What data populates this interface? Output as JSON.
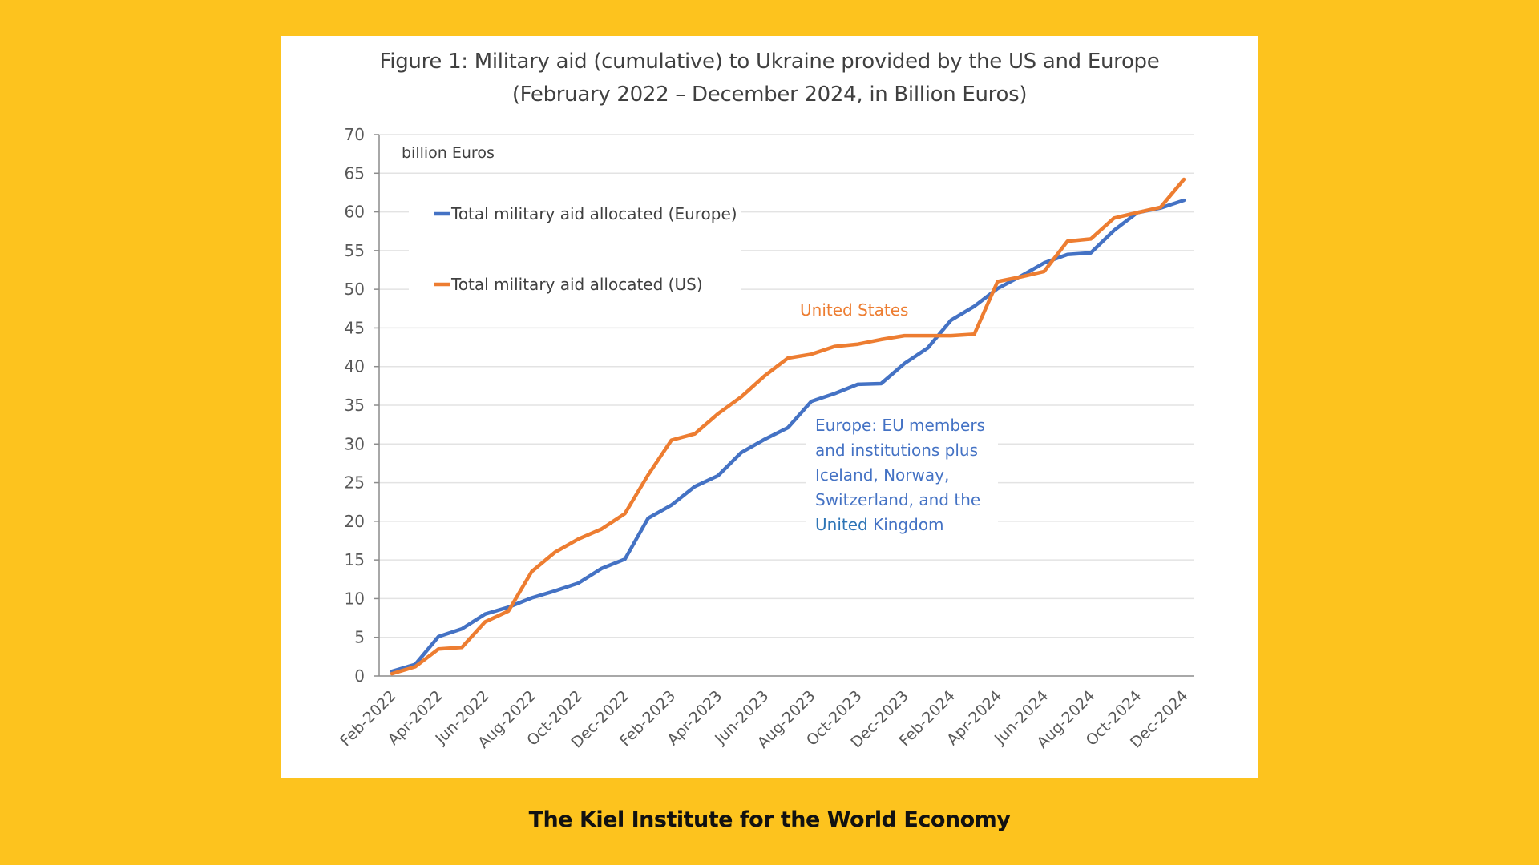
{
  "page": {
    "background_color": "#FDC31E",
    "footer": "The Kiel Institute for the World Economy"
  },
  "chart_data": {
    "type": "line",
    "title": "Figure 1: Military aid (cumulative) to Ukraine provided by the US and Europe",
    "subtitle": "(February 2022 – December 2024, in Billion Euros)",
    "ylabel": "billion Euros",
    "xlabel": "",
    "ylim": [
      0,
      70
    ],
    "yticks": [
      0,
      5,
      10,
      15,
      20,
      25,
      30,
      35,
      40,
      45,
      50,
      55,
      60,
      65,
      70
    ],
    "grid": true,
    "legend_position": "top-left",
    "x": [
      "Feb-2022",
      "Mar-2022",
      "Apr-2022",
      "May-2022",
      "Jun-2022",
      "Jul-2022",
      "Aug-2022",
      "Sep-2022",
      "Oct-2022",
      "Nov-2022",
      "Dec-2022",
      "Jan-2023",
      "Feb-2023",
      "Mar-2023",
      "Apr-2023",
      "May-2023",
      "Jun-2023",
      "Jul-2023",
      "Aug-2023",
      "Sep-2023",
      "Oct-2023",
      "Nov-2023",
      "Dec-2023",
      "Jan-2024",
      "Feb-2024",
      "Mar-2024",
      "Apr-2024",
      "May-2024",
      "Jun-2024",
      "Jul-2024",
      "Aug-2024",
      "Sep-2024",
      "Oct-2024",
      "Nov-2024",
      "Dec-2024"
    ],
    "xtick_labels": [
      "Feb-2022",
      "Apr-2022",
      "Jun-2022",
      "Aug-2022",
      "Oct-2022",
      "Dec-2022",
      "Feb-2023",
      "Apr-2023",
      "Jun-2023",
      "Aug-2023",
      "Oct-2023",
      "Dec-2023",
      "Feb-2024",
      "Apr-2024",
      "Jun-2024",
      "Aug-2024",
      "Oct-2024",
      "Dec-2024"
    ],
    "series": [
      {
        "name": "Total military aid allocated (Europe)",
        "color": "#4472C4",
        "values": [
          0.6,
          1.5,
          5.1,
          6.1,
          8.0,
          8.9,
          10.1,
          11.0,
          12.0,
          13.9,
          15.1,
          20.4,
          22.1,
          24.5,
          25.9,
          28.9,
          30.6,
          32.1,
          35.5,
          36.5,
          37.7,
          37.8,
          40.4,
          42.4,
          46.0,
          47.8,
          50.1,
          51.7,
          53.4,
          54.5,
          54.7,
          57.6,
          59.9,
          60.5,
          61.5
        ]
      },
      {
        "name": "Total military aid allocated (US)",
        "color": "#ED7D31",
        "values": [
          0.3,
          1.2,
          3.5,
          3.7,
          7.0,
          8.4,
          13.5,
          16.0,
          17.7,
          19.0,
          21.0,
          26.0,
          30.5,
          31.3,
          33.9,
          36.1,
          38.8,
          41.1,
          41.6,
          42.6,
          42.9,
          43.5,
          44.0,
          44.0,
          44.0,
          44.2,
          51.0,
          51.6,
          52.3,
          56.2,
          56.5,
          59.2,
          59.9,
          60.6,
          64.2
        ]
      }
    ],
    "annotations": [
      {
        "text": "United States",
        "color": "#ED7D31"
      },
      {
        "lines": [
          "Europe: EU members",
          "and institutions plus",
          "Iceland, Norway,",
          "Switzerland, and the"
        ],
        "last_line_a": "United",
        "last_line_b": " Kingdom",
        "color": "#4472C4",
        "accent_color": "#2E75B6"
      }
    ]
  }
}
